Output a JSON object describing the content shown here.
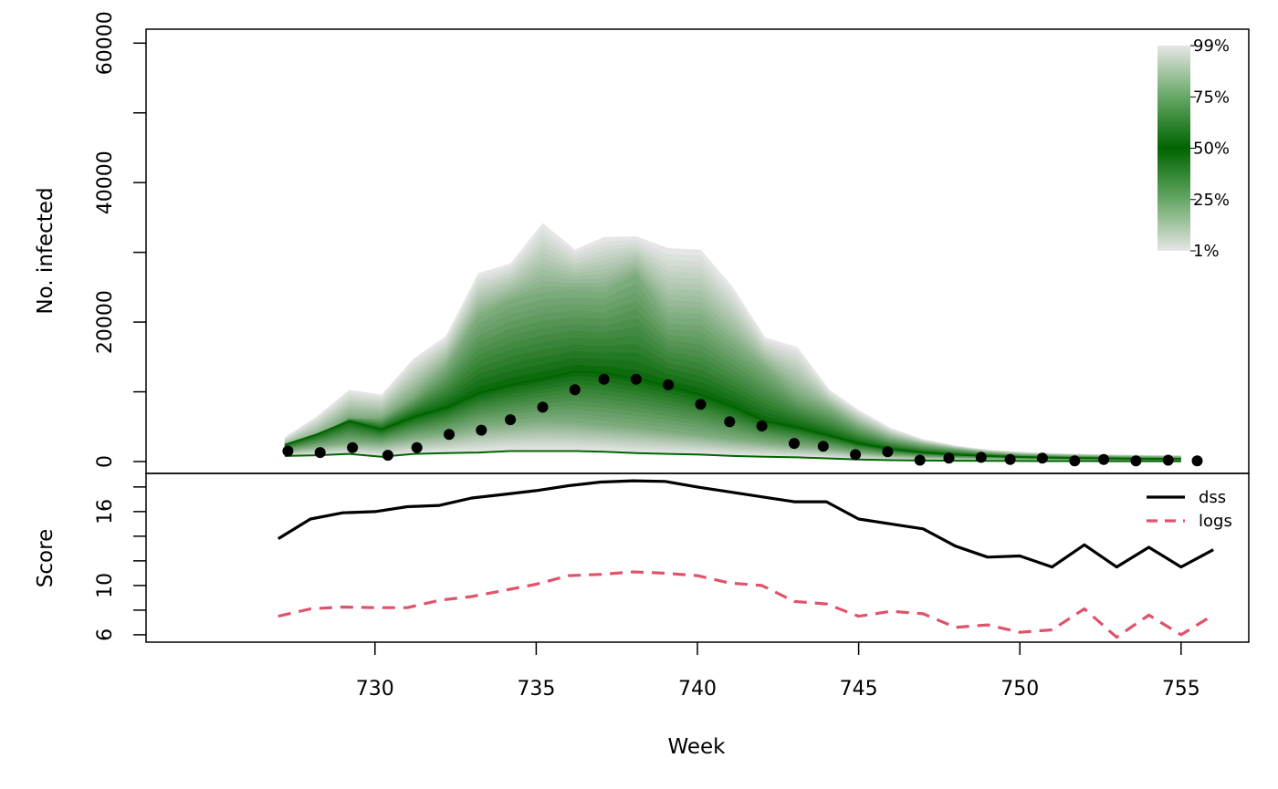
{
  "chart_data": [
    {
      "type": "area",
      "panel": "top",
      "ylabel": "No. infected",
      "ylim": [
        0,
        62000
      ],
      "y_ticks": [
        0,
        10000,
        20000,
        30000,
        40000,
        50000,
        60000
      ],
      "y_tick_labels": [
        "0",
        "20000",
        "40000",
        "60000"
      ],
      "x": [
        727.2,
        728.2,
        729.2,
        730.2,
        731.2,
        732.2,
        733.2,
        734.2,
        735.2,
        736.2,
        737.1,
        738.1,
        739.1,
        740.1,
        741.1,
        742.1,
        743.1,
        744.1,
        745.0,
        746.0,
        747.0,
        748.0,
        749.0,
        750.0,
        751.0,
        752.0,
        753.0,
        754.0,
        755.0
      ],
      "fan": {
        "p99": [
          3500,
          6500,
          10300,
          9600,
          14800,
          18000,
          27000,
          28400,
          34200,
          30400,
          32200,
          32300,
          30600,
          30400,
          25000,
          17800,
          16400,
          10300,
          7400,
          4800,
          3200,
          2300,
          1700,
          1400,
          1200,
          1100,
          1000,
          950,
          900
        ],
        "p75": [
          2100,
          3600,
          6300,
          6300,
          9400,
          13600,
          20700,
          23100,
          24300,
          24600,
          24300,
          26800,
          20600,
          20400,
          16900,
          13500,
          9700,
          7600,
          5100,
          3300,
          2400,
          1800,
          1300,
          1000,
          900,
          820,
          750,
          700,
          650
        ],
        "median": [
          2400,
          3900,
          5800,
          4600,
          6400,
          7700,
          9800,
          11000,
          11900,
          12900,
          12700,
          11900,
          10900,
          9600,
          7900,
          5800,
          4900,
          3700,
          2600,
          1800,
          1300,
          1000,
          800,
          650,
          550,
          480,
          420,
          380,
          350
        ],
        "p25": [
          1500,
          2200,
          2700,
          2600,
          3400,
          4000,
          5000,
          5400,
          5800,
          5600,
          5200,
          4800,
          4300,
          3800,
          3200,
          2700,
          2200,
          1800,
          1300,
          900,
          700,
          550,
          450,
          380,
          330,
          290,
          260,
          240,
          220
        ],
        "p1": [
          800,
          900,
          1100,
          700,
          1100,
          1200,
          1300,
          1500,
          1500,
          1500,
          1400,
          1200,
          1100,
          1000,
          800,
          700,
          600,
          450,
          300,
          200,
          150,
          120,
          100,
          80,
          70,
          60,
          50,
          50,
          40
        ]
      },
      "observed": {
        "x": [
          727.3,
          728.3,
          729.3,
          730.4,
          731.3,
          732.3,
          733.3,
          734.2,
          735.2,
          736.2,
          737.1,
          738.1,
          739.1,
          740.1,
          741.0,
          742.0,
          743.0,
          743.9,
          744.9,
          745.9,
          746.9,
          747.8,
          748.8,
          749.7,
          750.7,
          751.7,
          752.6,
          753.6,
          754.6,
          755.5
        ],
        "y": [
          1500,
          1300,
          2000,
          900,
          2000,
          3900,
          4500,
          6000,
          7800,
          10300,
          11800,
          11800,
          11000,
          8200,
          5700,
          5100,
          2600,
          2200,
          1000,
          1400,
          200,
          500,
          600,
          300,
          500,
          100,
          300,
          100,
          200,
          100
        ]
      },
      "colors": {
        "band_dark": "#006400",
        "band_light": "#e6e6e6",
        "median_line": "#006400",
        "points": "#000000"
      },
      "legend": {
        "labels": [
          "99%",
          "75%",
          "50%",
          "25%",
          "1%"
        ],
        "placement": "top-right"
      }
    },
    {
      "type": "line",
      "panel": "bottom",
      "xlabel": "Week",
      "ylabel": "Score",
      "xlim": [
        722.9,
        757.1
      ],
      "ylim": [
        5.4,
        19.1
      ],
      "x_ticks": [
        730,
        735,
        740,
        745,
        750,
        755
      ],
      "y_ticks": [
        6,
        8,
        10,
        12,
        14,
        16,
        18
      ],
      "y_tick_labels": [
        "6",
        "10",
        "16"
      ],
      "x": [
        727,
        728,
        729,
        730,
        731,
        732,
        733,
        734,
        735,
        736,
        737,
        738,
        739,
        740,
        741,
        742,
        743,
        744,
        745,
        746,
        747,
        748,
        749,
        750,
        751,
        752,
        753,
        754,
        755,
        756
      ],
      "series": [
        {
          "name": "dss",
          "color": "#000000",
          "dash": "solid",
          "values": [
            13.8,
            15.4,
            15.9,
            16.0,
            16.4,
            16.5,
            17.1,
            17.4,
            17.7,
            18.1,
            18.4,
            18.5,
            18.45,
            18.0,
            17.6,
            17.2,
            16.8,
            16.8,
            15.4,
            15.0,
            14.6,
            13.2,
            12.3,
            12.4,
            11.5,
            13.3,
            11.5,
            13.1,
            11.5,
            12.9
          ]
        },
        {
          "name": "logs",
          "color": "#DF536B",
          "dash": "dashed",
          "values": [
            7.5,
            8.1,
            8.25,
            8.2,
            8.2,
            8.8,
            9.1,
            9.6,
            10.1,
            10.8,
            10.9,
            11.1,
            11.0,
            10.8,
            10.2,
            10.0,
            8.7,
            8.5,
            7.5,
            7.9,
            7.7,
            6.6,
            6.8,
            6.2,
            6.4,
            8.1,
            5.8,
            7.6,
            6.0,
            7.6
          ]
        }
      ],
      "legend": {
        "placement": "top-right"
      }
    }
  ]
}
